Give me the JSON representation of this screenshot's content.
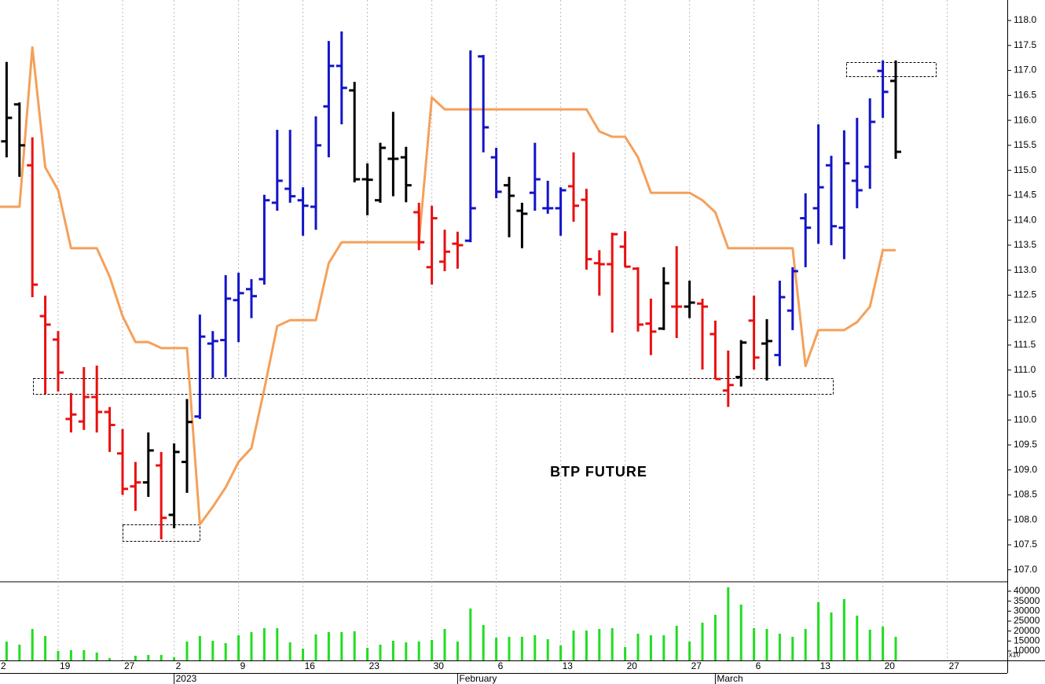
{
  "chart_data": {
    "type": "ohlc",
    "annotation": "BTP FUTURE",
    "categories": [
      "2",
      null,
      null,
      null,
      null,
      "19",
      null,
      null,
      null,
      null,
      "27",
      null,
      null,
      null,
      "2",
      null,
      null,
      null,
      null,
      "9",
      null,
      null,
      null,
      null,
      "16",
      null,
      null,
      null,
      null,
      "23",
      null,
      null,
      null,
      null,
      "30",
      null,
      null,
      null,
      null,
      "6",
      null,
      null,
      null,
      null,
      "13",
      null,
      null,
      null,
      null,
      "20",
      null,
      null,
      null,
      null,
      "27",
      null,
      null,
      null,
      null,
      "6",
      null,
      null,
      null,
      null,
      "13",
      null,
      null,
      null,
      null,
      "20",
      null,
      null,
      null,
      null,
      "27",
      null,
      null,
      null
    ],
    "period_labels": [
      null,
      null,
      null,
      null,
      null,
      null,
      null,
      null,
      null,
      null,
      null,
      null,
      null,
      null,
      "2023",
      null,
      null,
      null,
      null,
      null,
      null,
      null,
      null,
      null,
      null,
      null,
      null,
      null,
      null,
      null,
      null,
      null,
      null,
      null,
      null,
      null,
      "February",
      null,
      null,
      null,
      null,
      null,
      null,
      null,
      null,
      null,
      null,
      null,
      null,
      null,
      null,
      null,
      null,
      null,
      null,
      null,
      "March",
      null,
      null,
      null,
      null,
      null,
      null,
      null,
      null,
      null,
      null,
      null,
      null,
      null,
      null,
      null,
      null,
      null,
      null,
      null,
      null,
      null
    ],
    "ylim": [
      106.76,
      118.41
    ],
    "yticks": [
      {
        "value": 107,
        "label": "107.0"
      },
      {
        "value": 107.5,
        "label": "107.5"
      },
      {
        "value": 108,
        "label": "108.0"
      },
      {
        "value": 108.5,
        "label": "108.5"
      },
      {
        "value": 109,
        "label": "109.0"
      },
      {
        "value": 109.5,
        "label": "109.5"
      },
      {
        "value": 110,
        "label": "110.0"
      },
      {
        "value": 110.5,
        "label": "110.5"
      },
      {
        "value": 111,
        "label": "111.0"
      },
      {
        "value": 111.5,
        "label": "111.5"
      },
      {
        "value": 112,
        "label": "112.0"
      },
      {
        "value": 112.5,
        "label": "112.5"
      },
      {
        "value": 113,
        "label": "113.0"
      },
      {
        "value": 113.5,
        "label": "113.5"
      },
      {
        "value": 114,
        "label": "114.0"
      },
      {
        "value": 114.5,
        "label": "114.5"
      },
      {
        "value": 115,
        "label": "115.0"
      },
      {
        "value": 115.5,
        "label": "115.5"
      },
      {
        "value": 116,
        "label": "116.0"
      },
      {
        "value": 116.5,
        "label": "116.5"
      },
      {
        "value": 117,
        "label": "117.0"
      },
      {
        "value": 117.5,
        "label": "117.5"
      },
      {
        "value": 118,
        "label": "118.0"
      }
    ],
    "colors": [
      null,
      "#000000",
      "#000000",
      "#e81010",
      "#e81010",
      "#e81010",
      "#e81010",
      "#e81010",
      "#e81010",
      "#e81010",
      "#e81010",
      "#e81010",
      "#000000",
      "#e81010",
      "#000000",
      "#000000",
      "#1414c8",
      "#1414c8",
      "#1414c8",
      "#1414c8",
      "#1414c8",
      "#1414c8",
      "#1414c8",
      "#1414c8",
      "#1414c8",
      "#1414c8",
      "#1414c8",
      "#1414c8",
      "#000000",
      "#000000",
      "#000000",
      "#000000",
      "#000000",
      "#e81010",
      "#e81010",
      "#e81010",
      "#e81010",
      "#1414c8",
      "#1414c8",
      "#1414c8",
      "#000000",
      "#000000",
      "#1414c8",
      "#1414c8",
      "#1414c8",
      "#e81010",
      "#e81010",
      "#e81010",
      "#e81010",
      "#e81010",
      "#e81010",
      "#e81010",
      "#000000",
      "#e81010",
      "#000000",
      "#e81010",
      "#e81010",
      "#e81010",
      "#000000",
      "#e81010",
      "#000000",
      "#1414c8",
      "#1414c8",
      "#1414c8",
      "#1414c8",
      "#1414c8",
      "#1414c8",
      "#1414c8",
      "#1414c8",
      "#1414c8",
      "#000000",
      null,
      null,
      null,
      null,
      null,
      null,
      null
    ],
    "open": [
      null,
      115.58,
      116.32,
      115.1,
      112.08,
      111.61,
      110.02,
      109.97,
      110.46,
      110.16,
      109.33,
      108.67,
      108.75,
      109.09,
      108.1,
      109.16,
      110.07,
      111.53,
      111.6,
      112.4,
      112.62,
      112.82,
      114.35,
      114.63,
      114.4,
      114.27,
      116.28,
      117.09,
      116.6,
      114.82,
      114.4,
      115.23,
      115.26,
      114.16,
      113.06,
      113.17,
      113.53,
      113.59,
      117.28,
      115.26,
      114.7,
      114.19,
      114.55,
      114.24,
      114.24,
      114.68,
      114.41,
      113.14,
      113.12,
      113.47,
      113.03,
      111.93,
      111.83,
      112.27,
      112.27,
      112.33,
      111.72,
      110.59,
      110.86,
      111.99,
      111.53,
      111.3,
      112.19,
      114.04,
      114.24,
      115.1,
      113.85,
      114.79,
      115.07,
      116.99,
      116.79,
      null,
      null,
      null,
      null,
      null,
      null,
      null
    ],
    "high": [
      null,
      117.17,
      116.36,
      115.66,
      112.49,
      111.78,
      110.54,
      111.06,
      111.09,
      110.26,
      109.82,
      109.16,
      109.75,
      109.36,
      109.53,
      110.42,
      112.11,
      111.78,
      112.9,
      112.95,
      112.82,
      114.51,
      115.81,
      115.81,
      114.66,
      116.08,
      117.59,
      117.78,
      116.77,
      115.14,
      115.55,
      116.17,
      115.47,
      114.35,
      114.29,
      113.81,
      113.77,
      117.4,
      117.31,
      115.45,
      114.87,
      114.35,
      115.55,
      114.79,
      114.66,
      115.36,
      114.63,
      113.4,
      113.75,
      113.78,
      113.06,
      112.43,
      113.06,
      113.48,
      112.79,
      112.43,
      111.99,
      111.39,
      111.6,
      112.49,
      112.02,
      112.79,
      113.06,
      114.54,
      115.92,
      115.29,
      115.8,
      116.05,
      116.44,
      117.2,
      117.2,
      null,
      null,
      null,
      null,
      null,
      null,
      null
    ],
    "low": [
      null,
      115.26,
      114.87,
      112.46,
      110.52,
      110.57,
      109.75,
      109.8,
      109.75,
      109.36,
      108.5,
      108.18,
      108.46,
      107.61,
      107.83,
      108.54,
      110.02,
      110.84,
      110.86,
      111.56,
      112.04,
      112.71,
      114.19,
      114.35,
      113.69,
      113.81,
      115.26,
      115.92,
      114.76,
      114.1,
      114.35,
      114.48,
      114.36,
      113.4,
      112.71,
      112.98,
      113.03,
      113.56,
      115.36,
      114.44,
      113.66,
      113.44,
      114.19,
      114.13,
      113.69,
      113.97,
      113.01,
      112.49,
      111.75,
      113.06,
      111.77,
      111.3,
      111.8,
      111.64,
      112.04,
      111.01,
      110.82,
      110.26,
      110.67,
      111.01,
      110.79,
      111.08,
      111.8,
      113.06,
      113.53,
      113.5,
      113.22,
      114.24,
      114.63,
      116.05,
      115.23,
      null,
      null,
      null,
      null,
      null,
      null,
      null
    ],
    "close": [
      null,
      116.05,
      115.5,
      112.71,
      111.91,
      110.95,
      110.11,
      110.46,
      110.16,
      109.9,
      108.62,
      108.75,
      109.39,
      108.04,
      109.36,
      109.96,
      111.67,
      111.58,
      112.43,
      112.54,
      112.48,
      114.4,
      114.79,
      114.48,
      114.29,
      115.5,
      117.09,
      116.65,
      114.82,
      114.81,
      115.45,
      115.23,
      114.7,
      113.56,
      114.04,
      113.37,
      113.5,
      114.24,
      115.86,
      114.57,
      114.49,
      114.13,
      114.82,
      114.24,
      114.6,
      114.29,
      113.22,
      113.12,
      113.72,
      113.07,
      111.91,
      111.77,
      112.74,
      112.27,
      112.35,
      112.27,
      110.82,
      110.7,
      111.55,
      111.25,
      111.58,
      112.46,
      112.98,
      113.85,
      114.66,
      113.88,
      115.14,
      114.6,
      115.97,
      116.57,
      115.37,
      null,
      null,
      null,
      null,
      null,
      null,
      null
    ],
    "line": {
      "color": "#f5a05a",
      "values": [
        114.27,
        114.27,
        114.27,
        117.46,
        115.06,
        114.6,
        113.44,
        113.44,
        113.44,
        112.87,
        112.08,
        111.56,
        111.56,
        111.44,
        111.44,
        111.44,
        107.91,
        108.26,
        108.65,
        109.16,
        109.44,
        110.62,
        111.88,
        112.0,
        112.0,
        112.0,
        113.14,
        113.56,
        113.56,
        113.56,
        113.56,
        113.56,
        113.56,
        113.56,
        116.46,
        116.22,
        116.22,
        116.22,
        116.22,
        116.22,
        116.22,
        116.22,
        116.22,
        116.22,
        116.22,
        116.22,
        116.22,
        115.78,
        115.67,
        115.67,
        115.26,
        114.55,
        114.55,
        114.55,
        114.55,
        114.4,
        114.16,
        113.44,
        113.44,
        113.44,
        113.44,
        113.44,
        113.44,
        111.08,
        111.8,
        111.8,
        111.8,
        111.96,
        112.27,
        113.4,
        113.4,
        null,
        null,
        null,
        null,
        null,
        null,
        null
      ]
    },
    "volume": {
      "color": "#22dd22",
      "unit_label": "x10",
      "ylim": [
        5260,
        43940
      ],
      "yticks": [
        10000,
        15000,
        20000,
        25000,
        30000,
        35000,
        40000
      ],
      "values": [
        null,
        14700,
        13160,
        21050,
        17500,
        10000,
        10400,
        10400,
        9200,
        6450,
        5500,
        7630,
        8030,
        8030,
        6840,
        14740,
        17500,
        15130,
        13950,
        17890,
        19470,
        21440,
        21440,
        14340,
        11180,
        18290,
        19470,
        19470,
        19870,
        11580,
        13160,
        15130,
        14340,
        14740,
        15530,
        21050,
        14740,
        31310,
        23020,
        16710,
        17100,
        17100,
        17890,
        15920,
        12760,
        20260,
        20260,
        21050,
        21440,
        11970,
        18680,
        17890,
        17890,
        22630,
        14740,
        24210,
        28150,
        41960,
        33280,
        21440,
        21050,
        18680,
        17100,
        21050,
        34470,
        29340,
        36050,
        27760,
        20660,
        22240,
        17100,
        null,
        null,
        null,
        null,
        null,
        null,
        null
      ]
    }
  }
}
